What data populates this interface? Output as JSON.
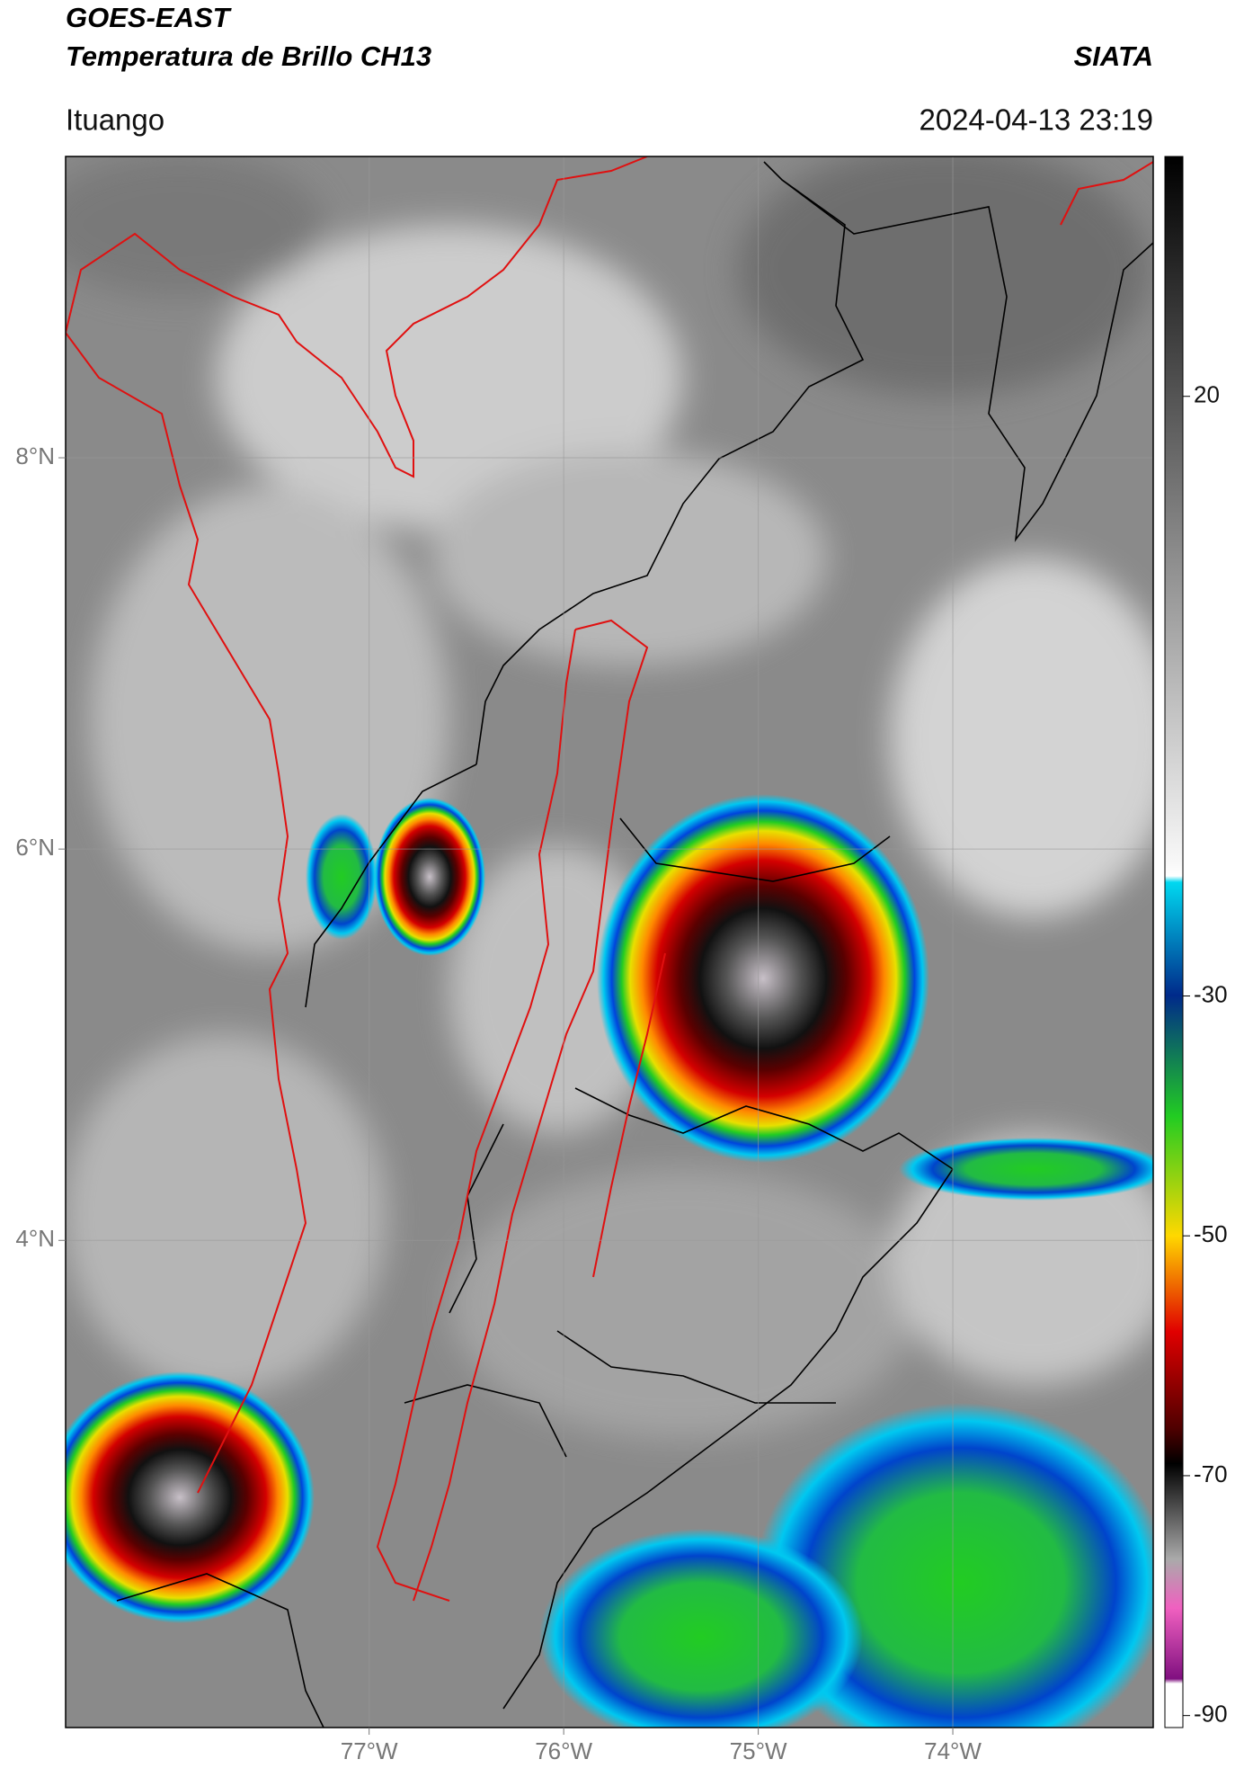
{
  "header": {
    "title": "GOES-EAST",
    "subtitle": "Temperatura de Brillo CH13",
    "brand": "SIATA",
    "location": "Ituango",
    "datetime": "2024-04-13 23:19"
  },
  "map": {
    "xlim": [
      -78.56,
      -72.97
    ],
    "ylim": [
      1.51,
      9.54
    ],
    "xticks": [
      {
        "value": -77,
        "label": "77°W"
      },
      {
        "value": -76,
        "label": "76°W"
      },
      {
        "value": -75,
        "label": "75°W"
      },
      {
        "value": -74,
        "label": "74°W"
      }
    ],
    "yticks": [
      {
        "value": 4,
        "label": "4°N"
      },
      {
        "value": 6,
        "label": "6°N"
      },
      {
        "value": 8,
        "label": "8°N"
      }
    ],
    "grid": true
  },
  "colorbar": {
    "vlim": [
      -91,
      40
    ],
    "ticks": [
      20,
      -30,
      -50,
      -70,
      -90
    ]
  }
}
